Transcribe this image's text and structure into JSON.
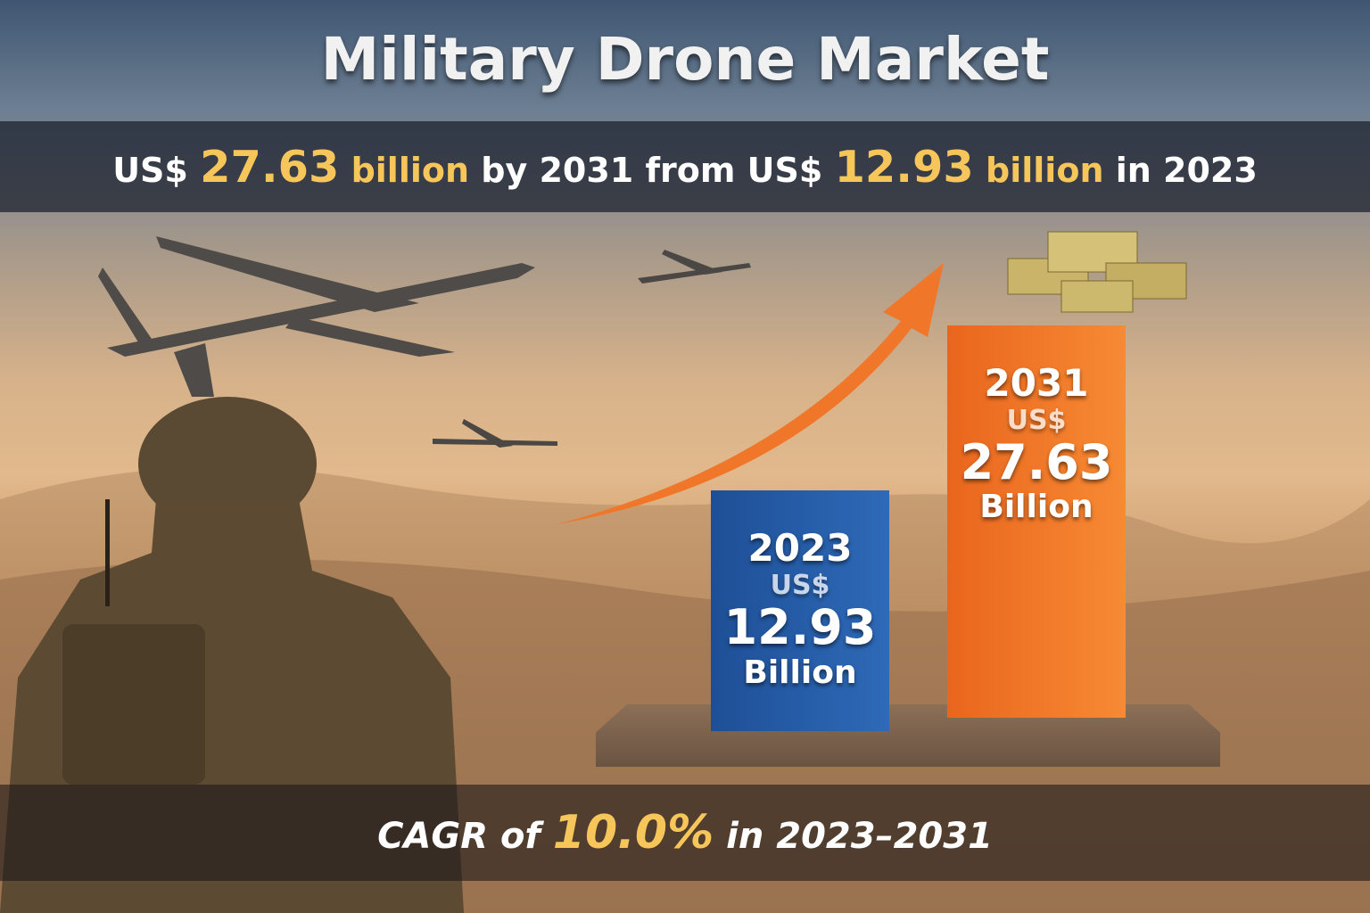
{
  "title": "Military Drone Market",
  "subtitle": {
    "prefix": "US$",
    "value_2031": "27.63",
    "unit1": "billion",
    "mid": "by 2031 from US$",
    "value_2023": "12.93",
    "unit2": "billion",
    "suffix": "in 2023"
  },
  "cagr": {
    "prefix": "CAGR of",
    "value": "10.0%",
    "suffix": "in 2023–2031"
  },
  "colors": {
    "blue_bar": "#2a5fa8",
    "orange_bar": "#f07a2a",
    "highlight": "#f7c65a"
  },
  "chart_data": {
    "type": "bar",
    "title": "Military Drone Market",
    "categories": [
      "2023",
      "2031"
    ],
    "values": [
      12.93,
      27.63
    ],
    "currency_label": "US$",
    "unit_label": "Billion",
    "value_labels": [
      "12.93",
      "27.63"
    ],
    "xlabel": "",
    "ylabel": "US$ Billion",
    "cagr_percent": 10.0
  }
}
